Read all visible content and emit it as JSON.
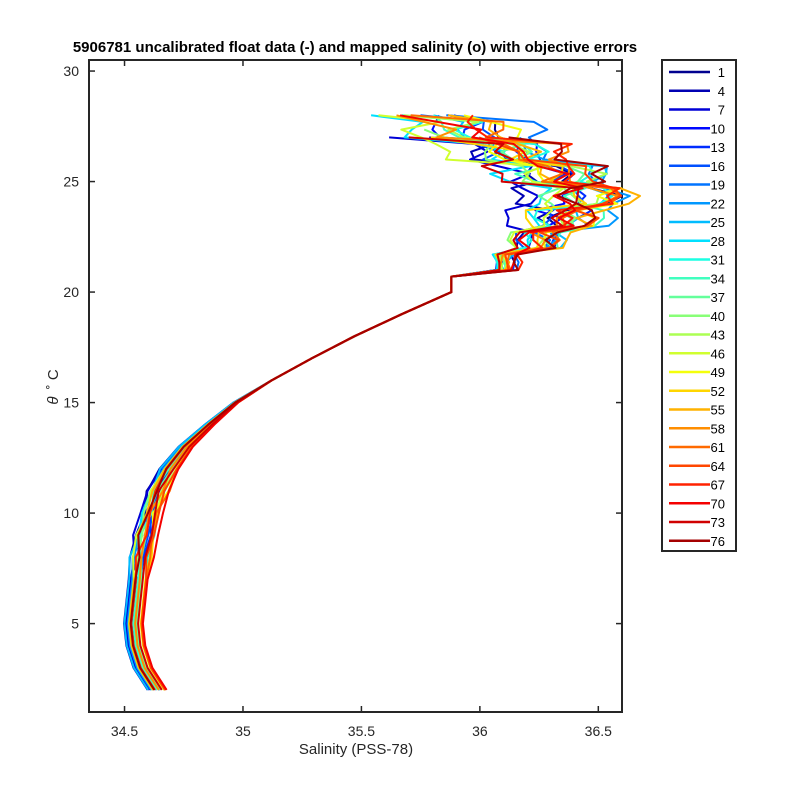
{
  "chart_data": {
    "type": "line",
    "title": "5906781 uncalibrated float data (-) and mapped salinity (o) with objective errors",
    "xlabel": "Salinity (PSS-78)",
    "ylabel_symbol": "θ",
    "ylabel_unit": "˚ C",
    "xlim": [
      34.35,
      36.6
    ],
    "ylim": [
      1,
      30.5
    ],
    "xticks": [
      "34.5",
      "35",
      "35.5",
      "36",
      "36.5"
    ],
    "xtick_values": [
      34.5,
      35.0,
      35.5,
      36.0,
      36.5
    ],
    "yticks": [
      "5",
      "10",
      "15",
      "20",
      "25",
      "30"
    ],
    "ytick_values": [
      5,
      10,
      15,
      20,
      25,
      30
    ],
    "grid": false,
    "legend_position": "outside-right",
    "colormap": "jet",
    "series": [
      {
        "name": "1",
        "color": "#00008f"
      },
      {
        "name": "4",
        "color": "#0000b3"
      },
      {
        "name": "7",
        "color": "#0000d6"
      },
      {
        "name": "10",
        "color": "#0008ff"
      },
      {
        "name": "13",
        "color": "#002cff"
      },
      {
        "name": "16",
        "color": "#0050ff"
      },
      {
        "name": "19",
        "color": "#0074ff"
      },
      {
        "name": "22",
        "color": "#0098ff"
      },
      {
        "name": "25",
        "color": "#00bcff"
      },
      {
        "name": "28",
        "color": "#00e0ff"
      },
      {
        "name": "31",
        "color": "#1cffe3"
      },
      {
        "name": "34",
        "color": "#40ffbf"
      },
      {
        "name": "37",
        "color": "#64ff9b"
      },
      {
        "name": "40",
        "color": "#88ff77"
      },
      {
        "name": "43",
        "color": "#acff53"
      },
      {
        "name": "46",
        "color": "#d0ff2f"
      },
      {
        "name": "49",
        "color": "#f4ff0b"
      },
      {
        "name": "52",
        "color": "#ffd600"
      },
      {
        "name": "55",
        "color": "#ffb200"
      },
      {
        "name": "58",
        "color": "#ff8e00"
      },
      {
        "name": "61",
        "color": "#ff6a00"
      },
      {
        "name": "64",
        "color": "#ff4600"
      },
      {
        "name": "67",
        "color": "#ff2200"
      },
      {
        "name": "70",
        "color": "#f40000"
      },
      {
        "name": "73",
        "color": "#d00000"
      },
      {
        "name": "76",
        "color": "#a50000"
      }
    ],
    "profile_shape": {
      "theta": [
        2.0,
        3.0,
        4.0,
        5.0,
        6.0,
        7.0,
        8.0,
        9.0,
        10.0,
        11.0,
        12.0,
        13.0,
        14.0,
        15.0,
        16.0,
        17.0,
        18.0,
        19.0,
        20.0,
        21.0,
        22.0,
        23.0,
        24.0,
        25.0,
        26.0,
        27.0,
        28.0
      ],
      "salinity": [
        34.64,
        34.58,
        34.55,
        34.54,
        34.55,
        34.56,
        34.57,
        34.59,
        34.61,
        34.64,
        34.69,
        34.76,
        34.86,
        34.97,
        35.12,
        35.29,
        35.47,
        35.67,
        35.88,
        36.1,
        36.24,
        36.34,
        36.38,
        36.3,
        36.12,
        35.92,
        35.72
      ]
    }
  },
  "legend": {
    "entries": [
      "1",
      "4",
      "7",
      "10",
      "13",
      "16",
      "19",
      "22",
      "25",
      "28",
      "31",
      "34",
      "37",
      "40",
      "43",
      "46",
      "49",
      "52",
      "55",
      "58",
      "61",
      "64",
      "67",
      "70",
      "73",
      "76"
    ]
  }
}
